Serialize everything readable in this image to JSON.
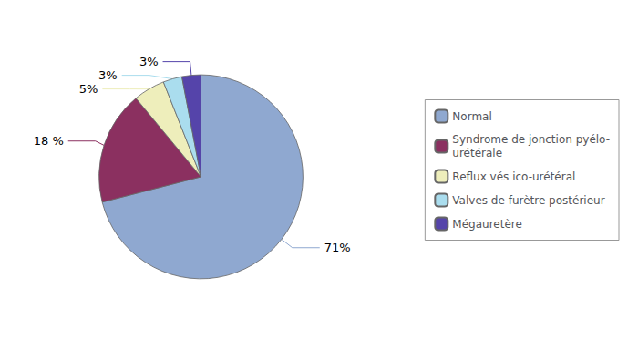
{
  "chart_data": {
    "type": "pie",
    "categories": [
      "Normal",
      "Syndrome de jonction pyélo-\nurétérale",
      "Reflux vés ico-urétéral",
      "Valves de furètre postérieur",
      "Mégauretère"
    ],
    "values": [
      71,
      18,
      5,
      3,
      3
    ],
    "value_labels": [
      "71%",
      "18 %",
      "5%",
      "3%",
      "3%"
    ],
    "data_labels": true,
    "colors": [
      "#8fa8d0",
      "#8b3060",
      "#eeeebb",
      "#aaddee",
      "#5544aa"
    ],
    "legend": "right"
  }
}
